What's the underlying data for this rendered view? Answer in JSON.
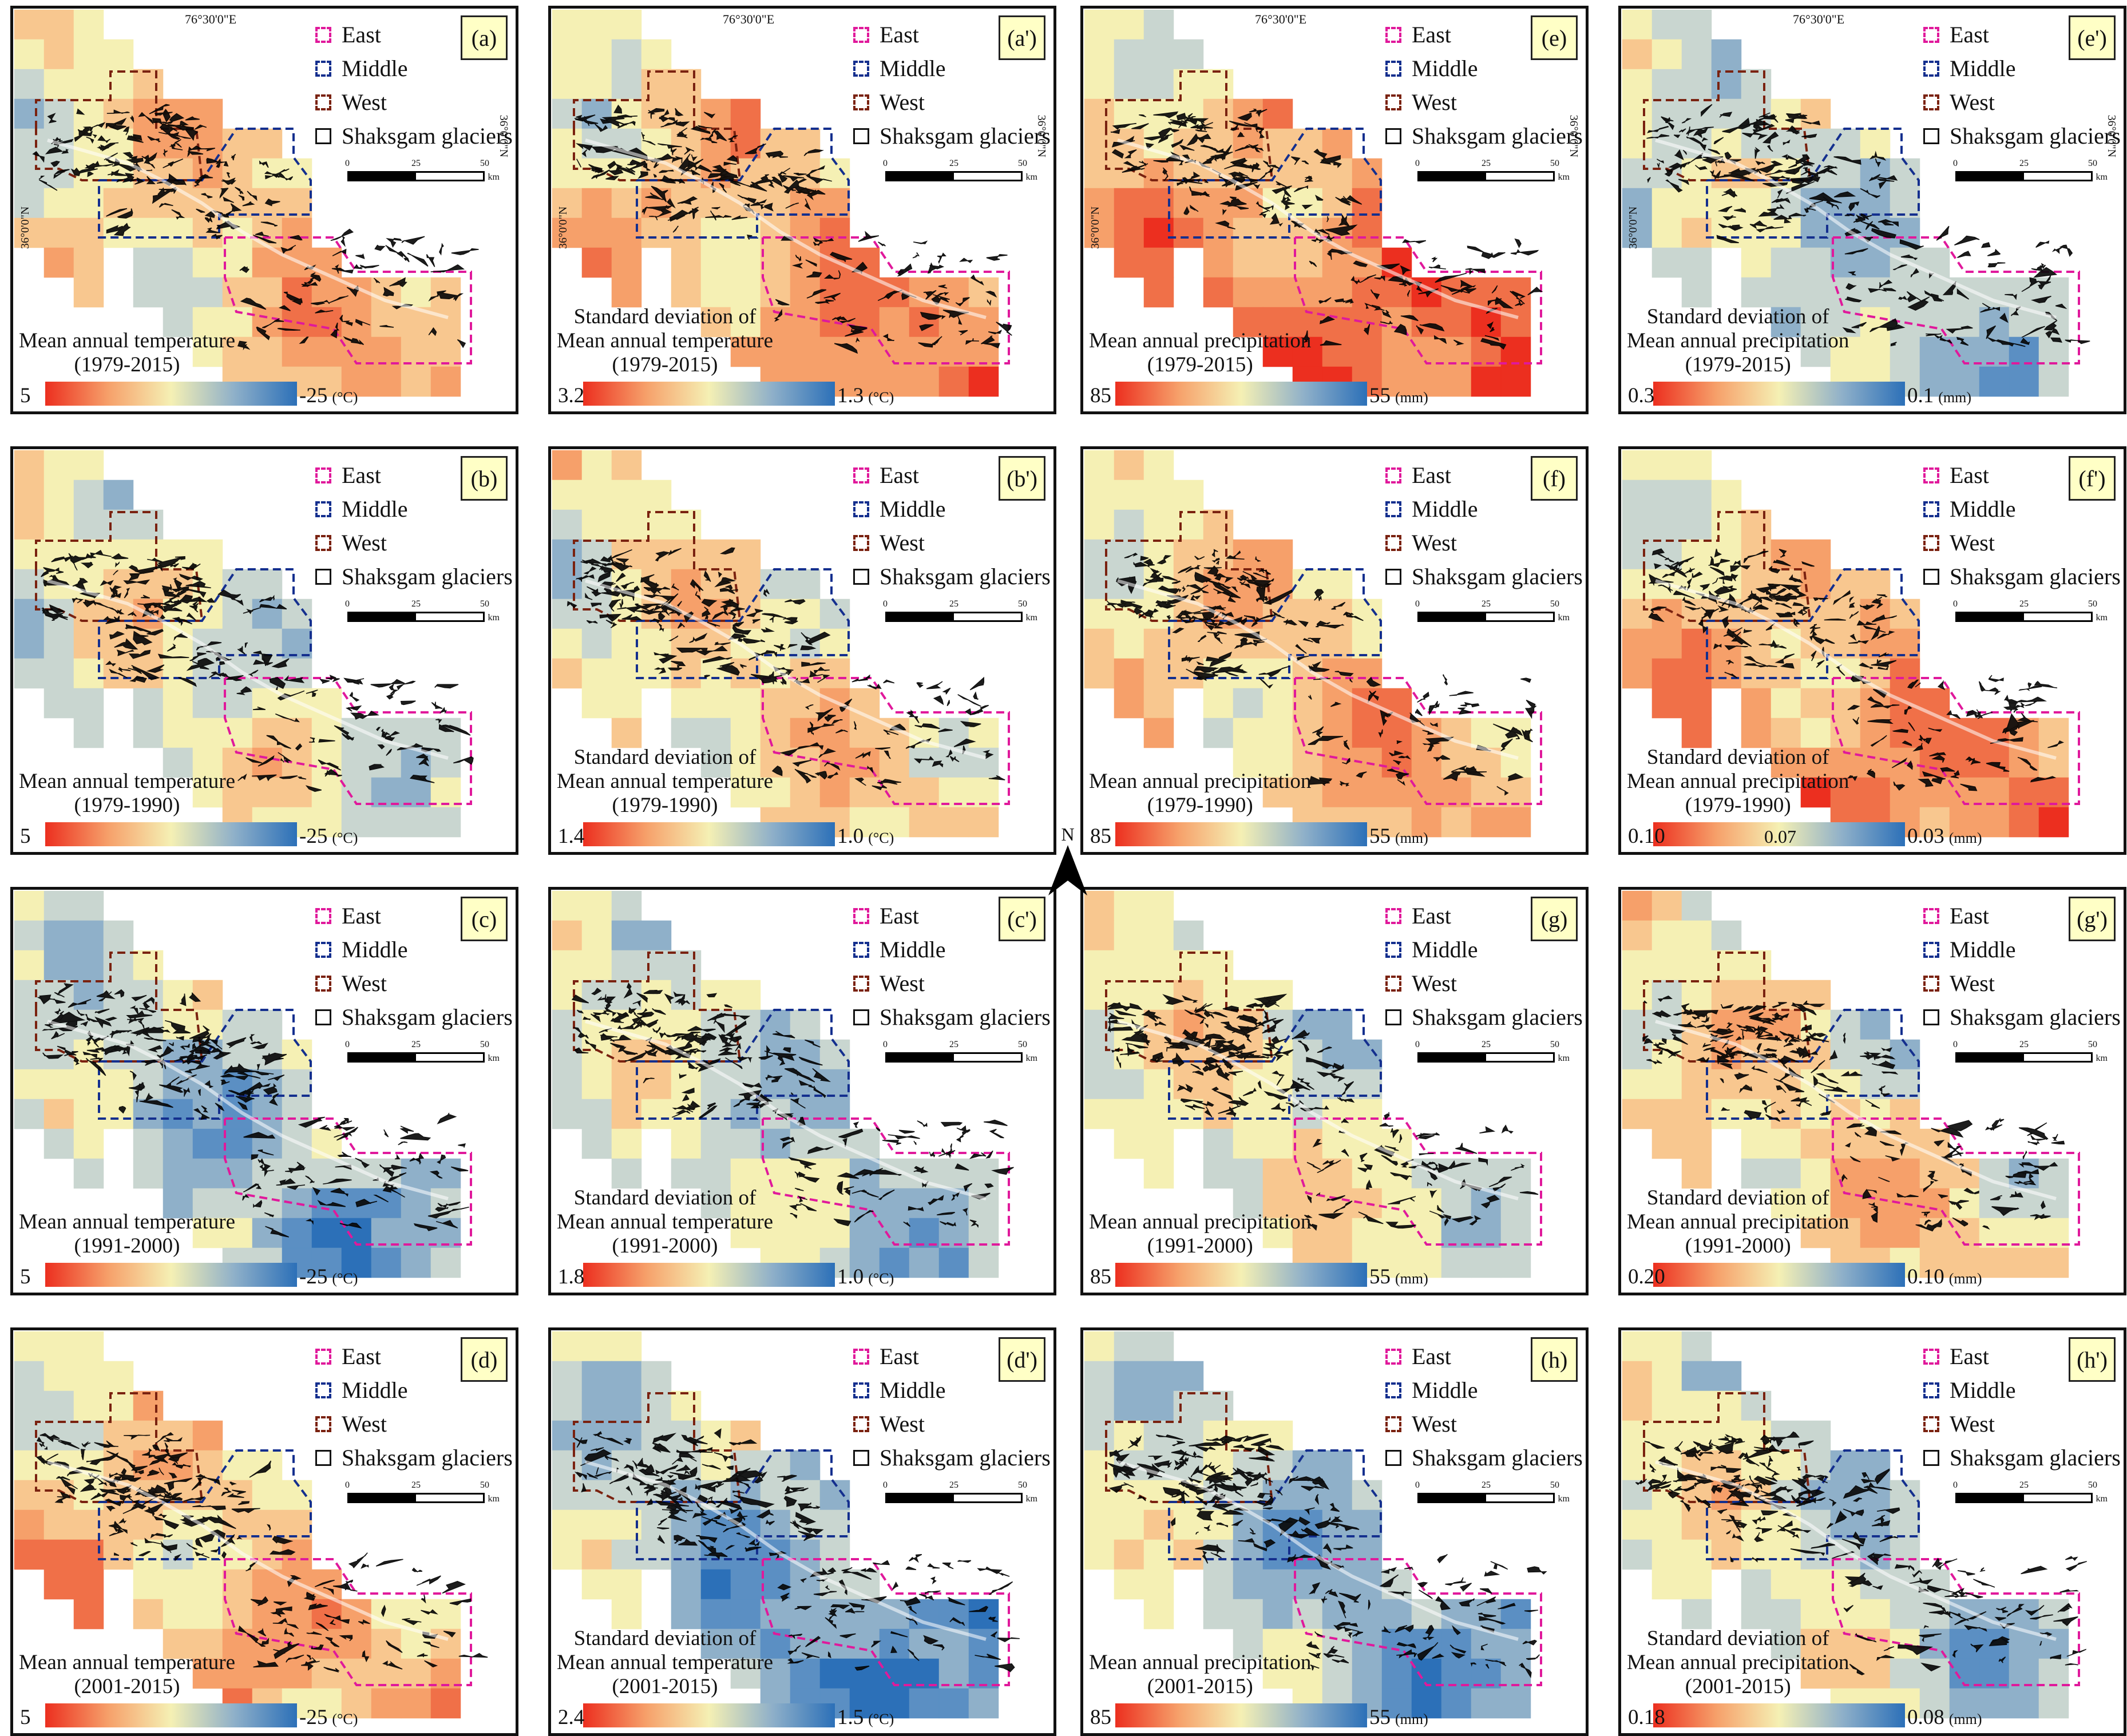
{
  "legend": {
    "east": "East",
    "middle": "Middle",
    "west": "West",
    "shaksgam": "Shaksgam glaciers"
  },
  "scalebar": {
    "ticks": [
      "0",
      "25",
      "50"
    ],
    "unit": "km"
  },
  "coords": {
    "lon": "76°30'0\"E",
    "lat": "36°0'0\"N"
  },
  "north_label": "N",
  "colors": {
    "east": "#e0199b",
    "middle": "#142f8e",
    "west": "#7a2210",
    "low": "#ec2f1f",
    "mid": "#f5f0b4",
    "high": "#2c70b8"
  },
  "panels": [
    {
      "tag": "(a)",
      "title": [
        "Mean annual temperature",
        "(1979-2015)"
      ],
      "cmin": "5",
      "cmax": "-25",
      "unit": "(°C)",
      "coords": true
    },
    {
      "tag": "(a')",
      "title": [
        "Standard deviation of",
        "Mean annual temperature",
        "(1979-2015)"
      ],
      "cmin": "3.2",
      "cmax": "1.3",
      "unit": "(°C)",
      "coords": true
    },
    {
      "tag": "(e)",
      "title": [
        "Mean annual precipitation",
        "(1979-2015)"
      ],
      "cmin": "85",
      "cmax": "55",
      "unit": "(mm)",
      "coords": true
    },
    {
      "tag": "(e')",
      "title": [
        "Standard deviation of",
        "Mean annual precipitation",
        "(1979-2015)"
      ],
      "cmin": "0.3",
      "cmax": "0.1",
      "unit": "(mm)",
      "coords": true
    },
    {
      "tag": "(b)",
      "title": [
        "Mean annual temperature",
        "(1979-1990)"
      ],
      "cmin": "5",
      "cmax": "-25",
      "unit": "(°C)"
    },
    {
      "tag": "(b')",
      "title": [
        "Standard deviation of",
        "Mean annual temperature",
        "(1979-1990)"
      ],
      "cmin": "1.4",
      "cmax": "1.0",
      "unit": "(°C)"
    },
    {
      "tag": "(f)",
      "title": [
        "Mean annual precipitation",
        "(1979-1990)"
      ],
      "cmin": "85",
      "cmax": "55",
      "unit": "(mm)"
    },
    {
      "tag": "(f')",
      "title": [
        "Standard deviation of",
        "Mean annual precipitation",
        "(1979-1990)"
      ],
      "cmin": "0.10",
      "cmid": "0.07",
      "cmax": "0.03",
      "unit": "(mm)"
    },
    {
      "tag": "(c)",
      "title": [
        "Mean annual temperature",
        "(1991-2000)"
      ],
      "cmin": "5",
      "cmax": "-25",
      "unit": "(°C)"
    },
    {
      "tag": "(c')",
      "title": [
        "Standard deviation of",
        "Mean annual temperature",
        "(1991-2000)"
      ],
      "cmin": "1.8",
      "cmax": "1.0",
      "unit": "(°C)"
    },
    {
      "tag": "(g)",
      "title": [
        "Mean annual precipitation",
        "(1991-2000)"
      ],
      "cmin": "85",
      "cmax": "55",
      "unit": "(mm)"
    },
    {
      "tag": "(g')",
      "title": [
        "Standard deviation of",
        "Mean annual precipitation",
        "(1991-2000)"
      ],
      "cmin": "0.20",
      "cmax": "0.10",
      "unit": "(mm)"
    },
    {
      "tag": "(d)",
      "title": [
        "Mean annual temperature",
        "(2001-2015)"
      ],
      "cmin": "5",
      "cmax": "-25",
      "unit": "(°C)"
    },
    {
      "tag": "(d')",
      "title": [
        "Standard deviation of",
        "Mean annual temperature",
        "(2001-2015)"
      ],
      "cmin": "2.4",
      "cmax": "1.5",
      "unit": "(°C)"
    },
    {
      "tag": "(h)",
      "title": [
        "Mean annual precipitation",
        "(2001-2015)"
      ],
      "cmin": "85",
      "cmax": "55",
      "unit": "(mm)"
    },
    {
      "tag": "(h')",
      "title": [
        "Standard deviation of",
        "Mean annual precipitation",
        "(2001-2015)"
      ],
      "cmin": "0.18",
      "cmax": "0.08",
      "unit": "(mm)"
    }
  ]
}
